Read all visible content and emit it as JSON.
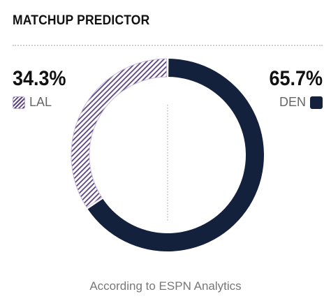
{
  "header": {
    "title": "MATCHUP PREDICTOR"
  },
  "chart_data": {
    "type": "pie",
    "style": "donut",
    "categories": [
      "LAL",
      "DEN"
    ],
    "values": [
      34.3,
      65.7
    ],
    "labels": [
      "34.3%",
      "65.7%"
    ],
    "colors": {
      "LAL": "#5b4480",
      "DEN": "#14213d"
    },
    "fill_patterns": {
      "LAL": "diagonal-hatch",
      "DEN": "solid"
    }
  },
  "teams": {
    "left": {
      "pct": "34.3%",
      "name": "LAL"
    },
    "right": {
      "pct": "65.7%",
      "name": "DEN"
    }
  },
  "footer": {
    "caption": "According to ESPN Analytics"
  }
}
